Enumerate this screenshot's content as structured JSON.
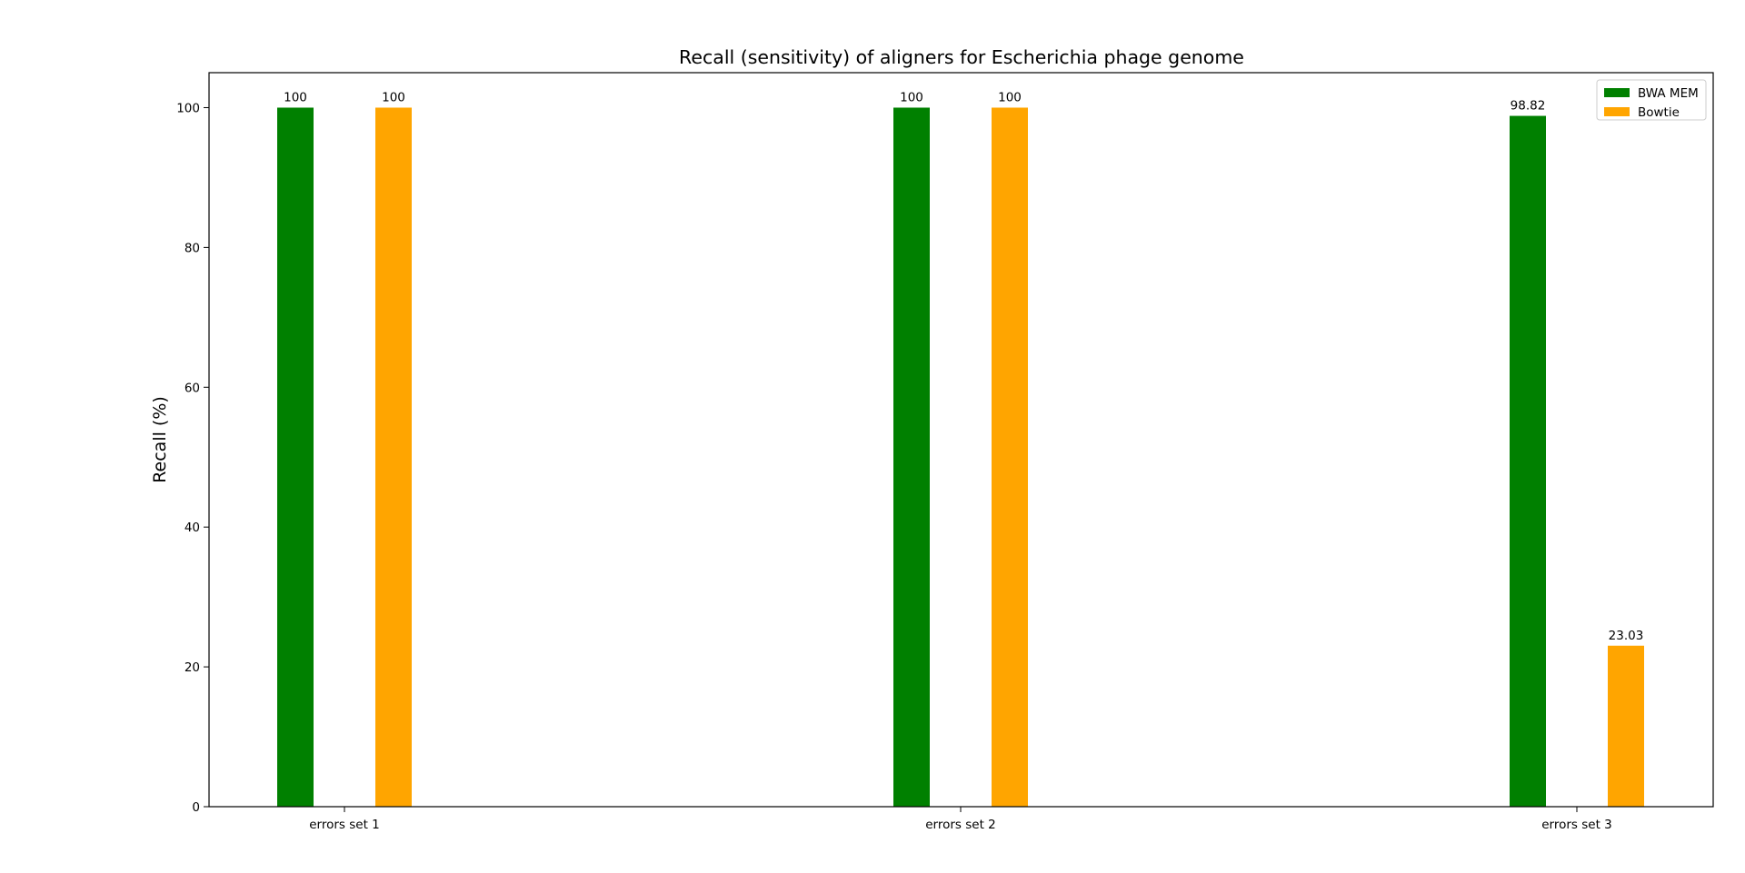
{
  "chart_data": {
    "type": "bar",
    "title": "Recall (sensitivity) of aligners for Escherichia phage genome",
    "xlabel": "",
    "ylabel": "Recall (%)",
    "categories": [
      "errors set 1",
      "errors set 2",
      "errors set 3"
    ],
    "series": [
      {
        "name": "BWA MEM",
        "color": "#008000",
        "values": [
          100,
          100,
          98.82
        ],
        "labels": [
          "100",
          "100",
          "98.82"
        ]
      },
      {
        "name": "Bowtie",
        "color": "#FFA500",
        "values": [
          100,
          100,
          23.03
        ],
        "labels": [
          "100",
          "100",
          "23.03"
        ]
      }
    ],
    "ylim": [
      0,
      105
    ],
    "yticks": [
      0,
      20,
      40,
      60,
      80,
      100
    ],
    "grid": false,
    "legend_position": "top-right"
  }
}
